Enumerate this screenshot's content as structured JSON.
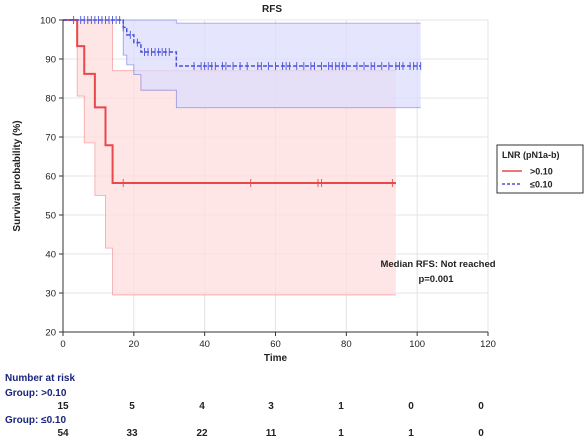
{
  "chart_data": {
    "type": "line",
    "title": "RFS",
    "xlabel": "Time",
    "ylabel": "Survival probability (%)",
    "xlim": [
      0,
      120
    ],
    "ylim": [
      20,
      100
    ],
    "xticks": [
      0,
      20,
      40,
      60,
      80,
      100,
      120
    ],
    "yticks": [
      20,
      30,
      40,
      50,
      60,
      70,
      80,
      90,
      100
    ],
    "grid": true,
    "legend": {
      "title": "LNR (pN1a-b)",
      "placement": "right",
      "entries": [
        ">0.10",
        "≤0.10"
      ]
    },
    "series": [
      {
        "name": ">0.10",
        "color": "#e8484b",
        "line_style": "solid",
        "ci_fill": "#ffdede",
        "steps": [
          [
            0,
            100
          ],
          [
            4,
            100
          ],
          [
            4,
            93.3
          ],
          [
            6,
            93.3
          ],
          [
            6,
            86.2
          ],
          [
            9,
            86.2
          ],
          [
            9,
            77.6
          ],
          [
            12,
            77.6
          ],
          [
            12,
            67.9
          ],
          [
            14,
            67.9
          ],
          [
            14,
            58.2
          ],
          [
            94,
            58.2
          ]
        ],
        "ci_upper": [
          [
            0,
            100
          ],
          [
            14,
            100
          ],
          [
            14,
            87
          ],
          [
            94,
            87
          ]
        ],
        "ci_lower": [
          [
            0,
            100
          ],
          [
            4,
            100
          ],
          [
            4,
            80.5
          ],
          [
            6,
            80.5
          ],
          [
            6,
            68.5
          ],
          [
            9,
            68.5
          ],
          [
            9,
            55
          ],
          [
            12,
            55
          ],
          [
            12,
            41.5
          ],
          [
            14,
            41.5
          ],
          [
            14,
            29.5
          ],
          [
            94,
            29.5
          ]
        ],
        "censored": [
          17,
          53,
          72,
          73,
          93
        ]
      },
      {
        "name": "≤0.10",
        "color": "#4a52d8",
        "line_style": "dashed",
        "ci_fill": "#dcdcfc",
        "steps": [
          [
            0,
            100
          ],
          [
            17,
            100
          ],
          [
            17,
            98.1
          ],
          [
            18,
            98.1
          ],
          [
            18,
            96.2
          ],
          [
            20,
            96.2
          ],
          [
            20,
            94.2
          ],
          [
            22,
            94.2
          ],
          [
            22,
            91.8
          ],
          [
            32,
            91.8
          ],
          [
            32,
            88.2
          ],
          [
            101,
            88.2
          ]
        ],
        "ci_upper": [
          [
            0,
            100
          ],
          [
            32,
            100
          ],
          [
            32,
            99.2
          ],
          [
            101,
            99.2
          ]
        ],
        "ci_lower": [
          [
            0,
            100
          ],
          [
            17,
            100
          ],
          [
            17,
            91
          ],
          [
            18,
            91
          ],
          [
            18,
            88.5
          ],
          [
            20,
            88.5
          ],
          [
            20,
            86
          ],
          [
            22,
            86
          ],
          [
            22,
            82
          ],
          [
            32,
            82
          ],
          [
            32,
            77.5
          ],
          [
            101,
            77.5
          ]
        ],
        "censored": [
          3,
          5,
          6,
          7,
          8,
          9,
          10,
          11,
          12,
          13,
          14,
          15,
          16,
          17,
          19,
          21,
          23,
          24,
          25,
          26,
          27,
          28,
          29,
          30,
          37,
          39,
          40,
          41,
          42,
          43,
          45,
          46,
          48,
          50,
          52,
          55,
          56,
          58,
          60,
          62,
          63,
          64,
          66,
          68,
          70,
          71,
          73,
          75,
          76,
          77,
          78,
          79,
          80,
          83,
          85,
          87,
          88,
          90,
          92,
          94,
          95,
          96,
          98,
          99,
          100,
          101
        ]
      }
    ],
    "annotations": [
      "Median RFS: Not reached",
      "p=0.001"
    ]
  },
  "risk_table": {
    "title": "Number at risk",
    "times": [
      0,
      20,
      40,
      60,
      80,
      100,
      120
    ],
    "groups": [
      {
        "label": "Group: >0.10",
        "counts": [
          "15",
          "5",
          "4",
          "3",
          "1",
          "0",
          "0"
        ]
      },
      {
        "label": "Group: ≤0.10",
        "counts": [
          "54",
          "33",
          "22",
          "11",
          "1",
          "1",
          "0"
        ]
      }
    ]
  }
}
